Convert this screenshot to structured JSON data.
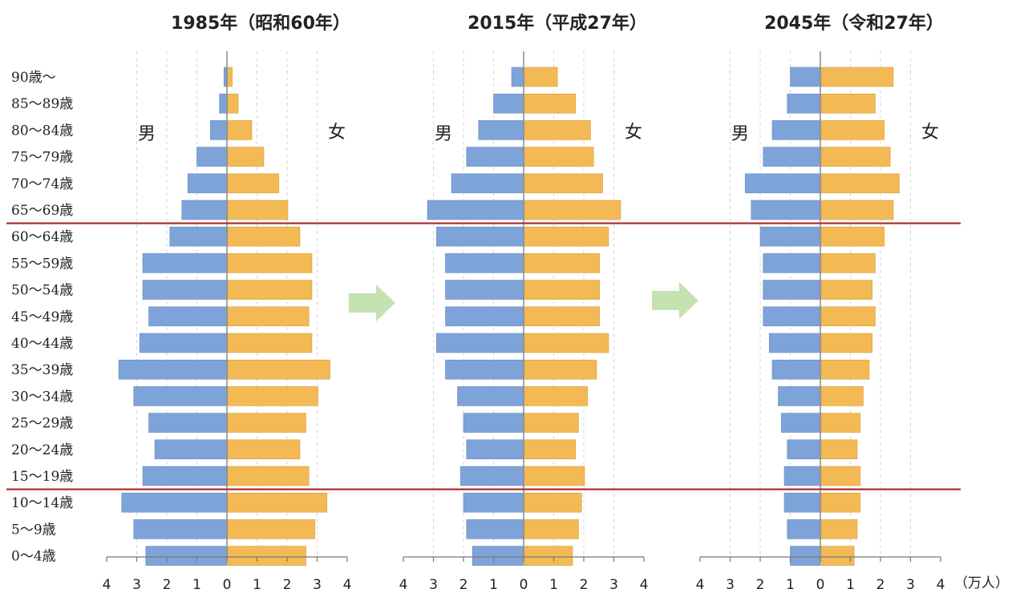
{
  "chart_data": {
    "type": "bar",
    "ages": [
      "0〜4歳",
      "5〜9歳",
      "10〜14歳",
      "15〜19歳",
      "20〜24歳",
      "25〜29歳",
      "30〜34歳",
      "35〜39歳",
      "40〜44歳",
      "45〜49歳",
      "50〜54歳",
      "55〜59歳",
      "60〜64歳",
      "65〜69歳",
      "70〜74歳",
      "75〜79歳",
      "80〜84歳",
      "85〜89歳",
      "90歳〜"
    ],
    "male_label": "男",
    "female_label": "女",
    "ticks": [
      {
        "value": 4,
        "label": "4"
      },
      {
        "value": 3,
        "label": "3"
      },
      {
        "value": 2,
        "label": "2"
      },
      {
        "value": 1,
        "label": "1"
      },
      {
        "value": 0,
        "label": "0"
      },
      {
        "value": 1,
        "label": "1"
      },
      {
        "value": 2,
        "label": "2"
      },
      {
        "value": 3,
        "label": "3"
      },
      {
        "value": 4,
        "label": "4"
      }
    ],
    "unit": "（万人）",
    "colors": {
      "male": "#7ea3d8",
      "female": "#f2b955",
      "divider": "#b03030",
      "arrow": "#c4e3b0"
    },
    "charts": [
      {
        "title": "1985年（昭和60年）",
        "male": [
          2.7,
          3.1,
          3.5,
          2.8,
          2.4,
          2.6,
          3.1,
          3.6,
          2.9,
          2.6,
          2.8,
          2.8,
          1.9,
          1.5,
          1.3,
          1.0,
          0.55,
          0.25,
          0.1
        ],
        "female": [
          2.6,
          2.9,
          3.3,
          2.7,
          2.4,
          2.6,
          3.0,
          3.4,
          2.8,
          2.7,
          2.8,
          2.8,
          2.4,
          2.0,
          1.7,
          1.2,
          0.8,
          0.35,
          0.15
        ]
      },
      {
        "title": "2015年（平成27年）",
        "male": [
          1.7,
          1.9,
          2.0,
          2.1,
          1.9,
          2.0,
          2.2,
          2.6,
          2.9,
          2.6,
          2.6,
          2.6,
          2.9,
          3.2,
          2.4,
          1.9,
          1.5,
          1.0,
          0.4
        ],
        "female": [
          1.6,
          1.8,
          1.9,
          2.0,
          1.7,
          1.8,
          2.1,
          2.4,
          2.8,
          2.5,
          2.5,
          2.5,
          2.8,
          3.2,
          2.6,
          2.3,
          2.2,
          1.7,
          1.1
        ]
      },
      {
        "title": "2045年（令和27年）",
        "male": [
          1.0,
          1.1,
          1.2,
          1.2,
          1.1,
          1.3,
          1.4,
          1.6,
          1.7,
          1.9,
          1.9,
          1.9,
          2.0,
          2.3,
          2.5,
          1.9,
          1.6,
          1.1,
          1.0
        ],
        "female": [
          1.1,
          1.2,
          1.3,
          1.3,
          1.2,
          1.3,
          1.4,
          1.6,
          1.7,
          1.8,
          1.7,
          1.8,
          2.1,
          2.4,
          2.6,
          2.3,
          2.1,
          1.8,
          2.4
        ]
      }
    ]
  }
}
